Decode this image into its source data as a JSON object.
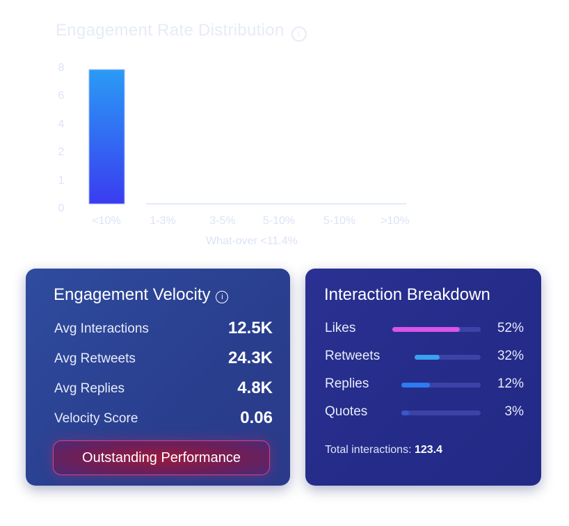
{
  "chart_data": {
    "type": "bar",
    "title": "Engagement Rate Distribution",
    "xlabel": "What-over <11.4%",
    "ylabel": "",
    "categories": [
      "<10%",
      "1-3%",
      "3-5%",
      "5-10%",
      "5-10%",
      ">10%"
    ],
    "values": [
      8,
      0,
      0,
      0,
      0,
      0
    ],
    "y_ticks": [
      "0",
      "1",
      "2",
      "4",
      "6",
      "8"
    ],
    "ylim": [
      0,
      8
    ],
    "grid": false,
    "bar_color_top": "#2a9bf5",
    "bar_color_bottom": "#3a3cf0",
    "axis_text_color": "#dbe3f5"
  },
  "velocity": {
    "title": "Engagement Velocity",
    "info_glyph": "i",
    "metrics": [
      {
        "label": "Avg Interactions",
        "value": "12.5K"
      },
      {
        "label": "Avg Retweets",
        "value": "24.3K"
      },
      {
        "label": "Avg Replies",
        "value": "4.8K"
      },
      {
        "label": "Velocity Score",
        "value": "0.06"
      }
    ],
    "performance_label": "Outstanding Performance"
  },
  "breakdown": {
    "title": "Interaction Breakdown",
    "items": [
      {
        "label": "Likes",
        "percent": "52%",
        "fill": 0.76,
        "color": "#d855e6"
      },
      {
        "label": "Retweets",
        "percent": "32%",
        "fill": 0.38,
        "color": "#3aa0f0"
      },
      {
        "label": "Replies",
        "percent": "12%",
        "fill": 0.36,
        "color": "#2f7af0"
      },
      {
        "label": "Quotes",
        "percent": "3%",
        "fill": 0.1,
        "color": "#3b58c8"
      }
    ],
    "total_label": "Total interactions:",
    "total_value": "123.4"
  }
}
